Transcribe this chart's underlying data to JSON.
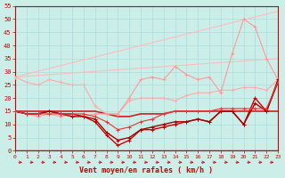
{
  "bg_color": "#cceee8",
  "grid_color": "#aadddd",
  "xlabel": "Vent moyen/en rafales ( km/h )",
  "xlabel_color": "#cc0000",
  "tick_color": "#cc0000",
  "arrow_color": "#cc0000",
  "xmin": 0,
  "xmax": 23,
  "ymin": 0,
  "ymax": 55,
  "yticks": [
    0,
    5,
    10,
    15,
    20,
    25,
    30,
    35,
    40,
    45,
    50,
    55
  ],
  "xticks": [
    0,
    1,
    2,
    3,
    4,
    5,
    6,
    7,
    8,
    9,
    10,
    11,
    12,
    13,
    14,
    15,
    16,
    17,
    18,
    19,
    20,
    21,
    22,
    23
  ],
  "lines": [
    {
      "x": [
        0,
        23
      ],
      "y": [
        28,
        53
      ],
      "color": "#ffbbbb",
      "lw": 0.8,
      "marker": null
    },
    {
      "x": [
        0,
        23
      ],
      "y": [
        28,
        35
      ],
      "color": "#ffbbbb",
      "lw": 0.8,
      "marker": null
    },
    {
      "x": [
        0,
        1,
        2,
        3,
        4,
        5,
        6,
        7,
        8,
        9,
        10,
        11,
        12,
        13,
        14,
        15,
        16,
        17,
        18,
        19,
        20,
        21,
        22,
        23
      ],
      "y": [
        28,
        26,
        25,
        27,
        26,
        25,
        25,
        17,
        14,
        14,
        19,
        20,
        20,
        20,
        19,
        21,
        22,
        22,
        23,
        23,
        24,
        24,
        23,
        27
      ],
      "color": "#ffaaaa",
      "lw": 0.8,
      "marker": "+",
      "ms": 3
    },
    {
      "x": [
        0,
        1,
        2,
        3,
        4,
        5,
        6,
        7,
        8,
        9,
        10,
        11,
        12,
        13,
        14,
        15,
        16,
        17,
        18,
        19,
        20,
        21,
        22,
        23
      ],
      "y": [
        15,
        14,
        13,
        14,
        13,
        14,
        13,
        14,
        14,
        14,
        20,
        27,
        28,
        27,
        32,
        29,
        27,
        28,
        22,
        37,
        50,
        47,
        35,
        27
      ],
      "color": "#ff9999",
      "lw": 0.8,
      "marker": "+",
      "ms": 3
    },
    {
      "x": [
        0,
        1,
        2,
        3,
        4,
        5,
        6,
        7,
        8,
        9,
        10,
        11,
        12,
        13,
        14,
        15,
        16,
        17,
        18,
        19,
        20,
        21,
        22,
        23
      ],
      "y": [
        15,
        14,
        14,
        15,
        14,
        14,
        13,
        11,
        6,
        2,
        4,
        8,
        8,
        9,
        10,
        11,
        12,
        11,
        15,
        15,
        10,
        20,
        15,
        27
      ],
      "color": "#cc0000",
      "lw": 1.0,
      "marker": "+",
      "ms": 3
    },
    {
      "x": [
        0,
        1,
        2,
        3,
        4,
        5,
        6,
        7,
        8,
        9,
        10,
        11,
        12,
        13,
        14,
        15,
        16,
        17,
        18,
        19,
        20,
        21,
        22,
        23
      ],
      "y": [
        15,
        14,
        14,
        15,
        14,
        13,
        13,
        12,
        7,
        4,
        5,
        8,
        9,
        10,
        11,
        11,
        12,
        11,
        15,
        15,
        10,
        18,
        15,
        26
      ],
      "color": "#aa0000",
      "lw": 1.0,
      "marker": "+",
      "ms": 3
    },
    {
      "x": [
        0,
        1,
        2,
        3,
        4,
        5,
        6,
        7,
        8,
        9,
        10,
        11,
        12,
        13,
        14,
        15,
        16,
        17,
        18,
        19,
        20,
        21,
        22,
        23
      ],
      "y": [
        15,
        15,
        15,
        15,
        15,
        15,
        15,
        15,
        14,
        13,
        13,
        14,
        14,
        14,
        15,
        15,
        15,
        15,
        15,
        15,
        15,
        15,
        15,
        15
      ],
      "color": "#cc2222",
      "lw": 1.2,
      "marker": null,
      "ms": 0
    },
    {
      "x": [
        0,
        1,
        2,
        3,
        4,
        5,
        6,
        7,
        8,
        9,
        10,
        11,
        12,
        13,
        14,
        15,
        16,
        17,
        18,
        19,
        20,
        21,
        22,
        23
      ],
      "y": [
        15,
        14,
        14,
        14,
        14,
        14,
        14,
        13,
        11,
        8,
        9,
        11,
        12,
        14,
        15,
        15,
        15,
        15,
        16,
        16,
        16,
        16,
        16,
        26
      ],
      "color": "#ee3333",
      "lw": 0.8,
      "marker": "+",
      "ms": 3
    }
  ]
}
